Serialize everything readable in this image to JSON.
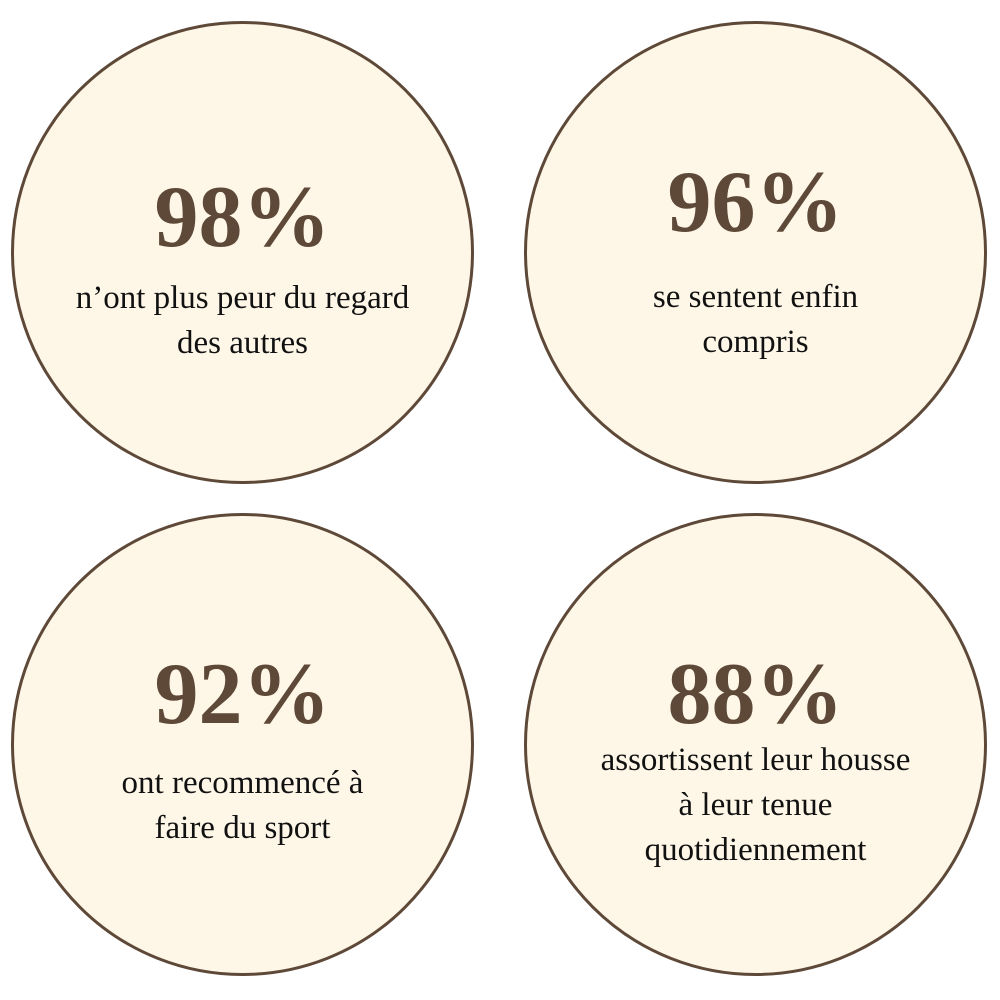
{
  "colors": {
    "accent": "#5e4938",
    "circle_fill": "#fef7e8",
    "text": "#111111"
  },
  "stats": [
    {
      "value": "98%",
      "lines": [
        "n’ont plus peur du regard",
        "des autres"
      ]
    },
    {
      "value": "96%",
      "lines": [
        "se sentent enfin",
        "compris"
      ]
    },
    {
      "value": "92%",
      "lines": [
        "ont recommencé à",
        "faire du sport"
      ]
    },
    {
      "value": "88%",
      "lines": [
        "assortissent leur housse",
        "à leur tenue",
        "quotidiennement"
      ]
    }
  ]
}
